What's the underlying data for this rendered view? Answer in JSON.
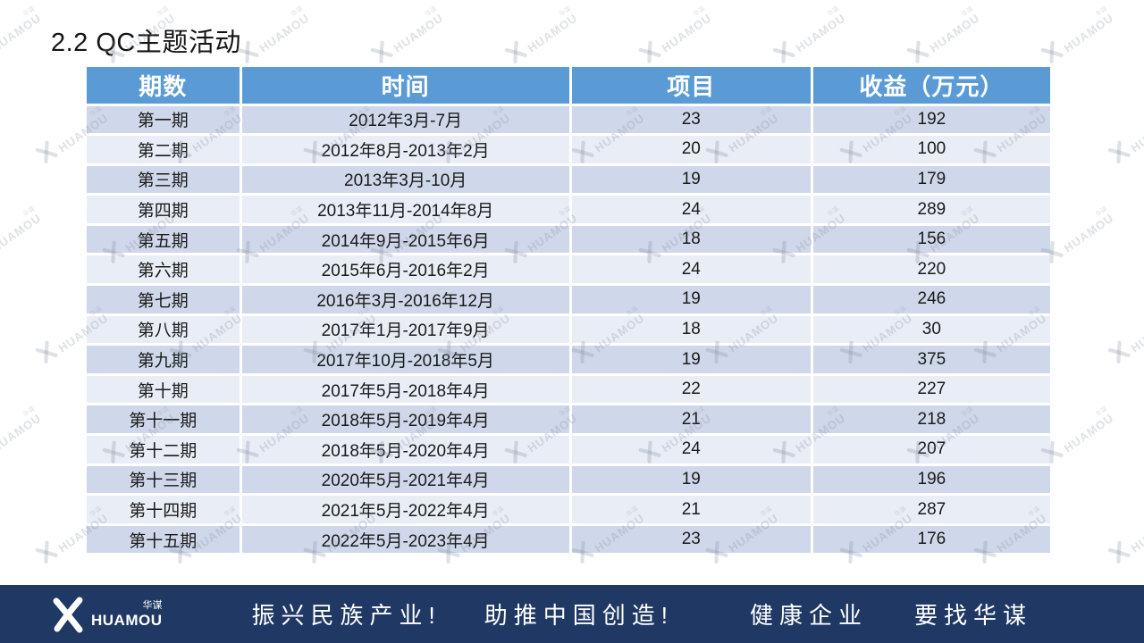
{
  "title": "2.2 QC主题活动",
  "table": {
    "columns": [
      "期数",
      "时间",
      "项目",
      "收益（万元）"
    ],
    "rows": [
      [
        "第一期",
        "2012年3月-7月",
        "23",
        "192"
      ],
      [
        "第二期",
        "2012年8月-2013年2月",
        "20",
        "100"
      ],
      [
        "第三期",
        "2013年3月-10月",
        "19",
        "179"
      ],
      [
        "第四期",
        "2013年11月-2014年8月",
        "24",
        "289"
      ],
      [
        "第五期",
        "2014年9月-2015年6月",
        "18",
        "156"
      ],
      [
        "第六期",
        "2015年6月-2016年2月",
        "24",
        "220"
      ],
      [
        "第七期",
        "2016年3月-2016年12月",
        "19",
        "246"
      ],
      [
        "第八期",
        "2017年1月-2017年9月",
        "18",
        "30"
      ],
      [
        "第九期",
        "2017年10月-2018年5月",
        "19",
        "375"
      ],
      [
        "第十期",
        "2017年5月-2018年4月",
        "22",
        "227"
      ],
      [
        "第十一期",
        "2018年5月-2019年4月",
        "21",
        "218"
      ],
      [
        "第十二期",
        "2018年5月-2020年4月",
        "24",
        "207"
      ],
      [
        "第十三期",
        "2020年5月-2021年4月",
        "19",
        "196"
      ],
      [
        "第十四期",
        "2021年5月-2022年4月",
        "21",
        "287"
      ],
      [
        "第十五期",
        "2022年5月-2023年4月",
        "23",
        "176"
      ]
    ]
  },
  "watermark": {
    "cn": "华谋",
    "en": "HUAMOU"
  },
  "footer": {
    "logo": {
      "cn": "华谋",
      "en": "HUAMOU"
    },
    "slogans": [
      "振兴民族产业!",
      "助推中国创造!",
      "健康企业",
      "要找华谋"
    ]
  },
  "colors": {
    "header_blue": "#5B9BD5",
    "row_dark": "#CFD8EA",
    "row_light": "#E9EDF6",
    "footer_navy": "#1F3864",
    "title_text": "#141414",
    "cell_text": "#1a1a1a"
  }
}
